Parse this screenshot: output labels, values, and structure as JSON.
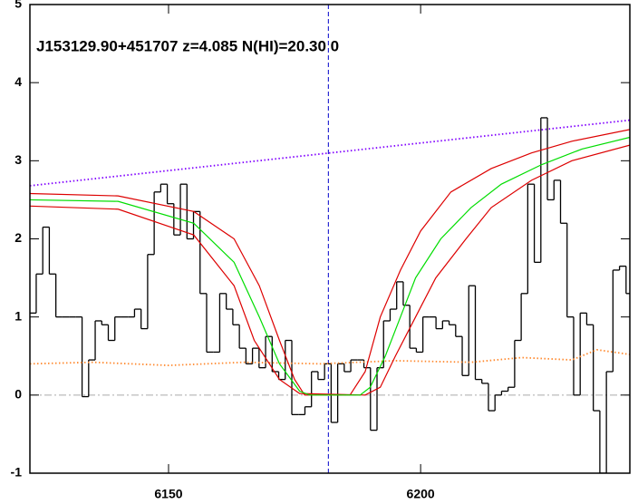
{
  "chart_data": {
    "type": "line",
    "title": "J153129.90+451707 z=4.085 N(HI)=20.30 0",
    "xlim": [
      6122.5,
      6241.5
    ],
    "xticks": [
      6150,
      6200
    ],
    "ylim": [
      -1,
      5
    ],
    "yticks": [
      -1,
      0,
      1,
      2,
      3,
      4,
      5
    ],
    "hlines": [
      0
    ],
    "hline_color": "#aaaaaa",
    "vlines": [
      6181.7
    ],
    "vline_color": "#0000cc",
    "series": [
      {
        "style": "step",
        "color": "#000000",
        "x": [
          6123.1,
          6124.4,
          6125.7,
          6127.0,
          6128.3,
          6129.6,
          6130.9,
          6132.2,
          6133.5,
          6134.8,
          6136.1,
          6137.4,
          6138.7,
          6140.0,
          6141.3,
          6142.6,
          6143.9,
          6145.2,
          6146.5,
          6147.8,
          6149.1,
          6150.4,
          6151.7,
          6153.0,
          6154.3,
          6155.6,
          6156.9,
          6158.2,
          6159.5,
          6160.8,
          6162.1,
          6163.4,
          6164.7,
          6166.0,
          6167.3,
          6168.6,
          6169.9,
          6171.2,
          6172.5,
          6173.8,
          6175.1,
          6176.4,
          6177.7,
          6179.0,
          6180.3,
          6181.6,
          6182.9,
          6184.2,
          6185.5,
          6186.8,
          6188.1,
          6189.4,
          6190.7,
          6192.0,
          6193.3,
          6194.6,
          6195.9,
          6197.2,
          6198.5,
          6199.8,
          6201.1,
          6202.4,
          6203.7,
          6205.0,
          6206.3,
          6207.6,
          6208.9,
          6210.2,
          6211.5,
          6212.8,
          6214.1,
          6215.4,
          6216.7,
          6218.0,
          6219.3,
          6220.6,
          6221.9,
          6223.2,
          6224.5,
          6225.8,
          6227.1,
          6228.4,
          6229.7,
          6231.0,
          6232.3,
          6233.6,
          6234.9,
          6236.2,
          6237.5,
          6238.8,
          6240.1,
          6241.4
        ],
        "values": [
          1.05,
          1.55,
          2.15,
          1.55,
          1.0,
          1.0,
          1.0,
          1.0,
          -0.02,
          0.45,
          0.95,
          0.9,
          0.7,
          1.0,
          1.0,
          1.0,
          1.1,
          0.85,
          1.8,
          2.6,
          2.7,
          2.45,
          2.05,
          2.7,
          2.0,
          2.35,
          1.3,
          0.55,
          0.55,
          1.3,
          1.1,
          0.9,
          0.6,
          0.4,
          0.6,
          0.35,
          0.75,
          0.3,
          0.2,
          0.7,
          -0.25,
          -0.25,
          -0.15,
          0.3,
          0.2,
          0.4,
          -0.35,
          0.4,
          0.3,
          0.45,
          0.45,
          0.35,
          -0.45,
          0.35,
          0.95,
          1.1,
          1.45,
          1.15,
          0.6,
          0.55,
          1.0,
          1.0,
          0.85,
          0.95,
          0.9,
          0.75,
          0.25,
          1.4,
          0.2,
          0.15,
          -0.2,
          0.0,
          0.05,
          0.1,
          0.7,
          1.3,
          2.7,
          1.7,
          3.55,
          2.5,
          2.75,
          2.2,
          1.0,
          0.0,
          1.05,
          0.9,
          -0.2,
          -1.0,
          0.3,
          1.6,
          1.65,
          1.3
        ]
      },
      {
        "style": "dotted",
        "color": "#8000ff",
        "x": [
          6122.5,
          6241.5
        ],
        "values": [
          2.68,
          3.52
        ]
      },
      {
        "style": "dotted",
        "color": "#ff8a30",
        "x": [
          6122.5,
          6135,
          6150,
          6165,
          6180,
          6195,
          6210,
          6220,
          6230,
          6235,
          6241.5
        ],
        "values": [
          0.4,
          0.42,
          0.38,
          0.42,
          0.4,
          0.44,
          0.42,
          0.48,
          0.45,
          0.58,
          0.52
        ]
      },
      {
        "style": "solid",
        "color": "#dd0000",
        "x": [
          6122.5,
          6140,
          6155,
          6163,
          6168,
          6172,
          6175,
          6177,
          6186,
          6189,
          6192,
          6196,
          6200,
          6206,
          6214,
          6222,
          6230,
          6241.5
        ],
        "values": [
          2.58,
          2.55,
          2.35,
          2.0,
          1.4,
          0.7,
          0.2,
          0,
          0,
          0.3,
          1.0,
          1.6,
          2.1,
          2.6,
          2.9,
          3.1,
          3.25,
          3.4
        ]
      },
      {
        "style": "solid",
        "color": "#dd0000",
        "x": [
          6122.5,
          6140,
          6155,
          6163,
          6167,
          6172,
          6176,
          6189,
          6192,
          6195,
          6199,
          6203,
          6209,
          6214,
          6222,
          6230,
          6241.5
        ],
        "values": [
          2.42,
          2.38,
          2.05,
          1.4,
          0.7,
          0.2,
          0.02,
          0,
          0.1,
          0.5,
          1.0,
          1.5,
          2.0,
          2.4,
          2.75,
          3.0,
          3.2
        ]
      },
      {
        "style": "solid",
        "color": "#00dd00",
        "x": [
          6122.5,
          6140,
          6155,
          6163,
          6168,
          6172,
          6176,
          6178,
          6188,
          6190,
          6193,
          6196,
          6199,
          6204,
          6210,
          6216,
          6224,
          6232,
          6241.5
        ],
        "values": [
          2.5,
          2.48,
          2.2,
          1.7,
          1.0,
          0.4,
          0.05,
          0,
          0,
          0.1,
          0.5,
          1.0,
          1.5,
          2.0,
          2.4,
          2.7,
          2.95,
          3.15,
          3.3
        ]
      }
    ]
  }
}
